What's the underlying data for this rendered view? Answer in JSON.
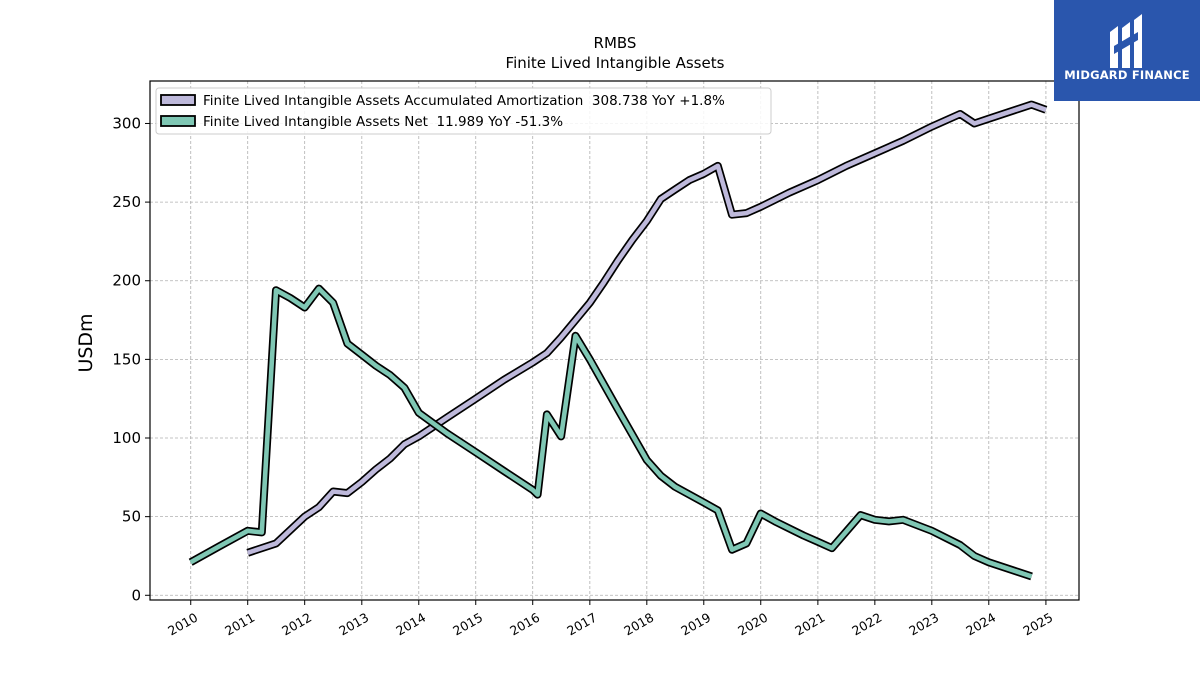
{
  "logo": {
    "text": "MIDGARD FINANCE",
    "background": "#2a56ad"
  },
  "chart_data": {
    "type": "line",
    "title": "RMBS",
    "subtitle": "Finite Lived Intangible Assets",
    "ylabel": "USDm",
    "xlabel": "",
    "ylim": [
      -3,
      327
    ],
    "xlim": [
      "2009-04-15",
      "2025-08-01"
    ],
    "yticks": [
      0,
      50,
      100,
      150,
      200,
      250,
      300
    ],
    "xticks": [
      "2010",
      "2011",
      "2012",
      "2013",
      "2014",
      "2015",
      "2016",
      "2017",
      "2018",
      "2019",
      "2020",
      "2021",
      "2022",
      "2023",
      "2024",
      "2025"
    ],
    "grid": true,
    "legend_position": "top-left",
    "series": [
      {
        "name": "Finite Lived Intangible Assets Accumulated Amortization  308.738 YoY +1.8%",
        "color": "#beb9db",
        "points": [
          [
            "2011-01-01",
            27
          ],
          [
            "2011-07-01",
            33
          ],
          [
            "2012-01-01",
            50
          ],
          [
            "2012-04-01",
            56
          ],
          [
            "2012-07-01",
            66
          ],
          [
            "2012-10-01",
            65
          ],
          [
            "2013-01-01",
            72
          ],
          [
            "2013-04-01",
            80
          ],
          [
            "2013-07-01",
            87
          ],
          [
            "2013-10-01",
            96
          ],
          [
            "2014-01-01",
            101
          ],
          [
            "2014-07-01",
            113
          ],
          [
            "2015-01-01",
            125
          ],
          [
            "2015-07-01",
            137
          ],
          [
            "2016-01-01",
            148
          ],
          [
            "2016-04-01",
            154
          ],
          [
            "2016-07-01",
            164
          ],
          [
            "2016-10-01",
            175
          ],
          [
            "2017-01-01",
            186
          ],
          [
            "2017-04-01",
            199
          ],
          [
            "2017-07-01",
            213
          ],
          [
            "2017-10-01",
            226
          ],
          [
            "2018-01-01",
            238
          ],
          [
            "2018-04-01",
            252
          ],
          [
            "2018-07-01",
            258
          ],
          [
            "2018-10-01",
            264
          ],
          [
            "2019-01-01",
            268
          ],
          [
            "2019-04-01",
            273
          ],
          [
            "2019-07-01",
            242
          ],
          [
            "2019-10-01",
            243
          ],
          [
            "2020-01-01",
            247
          ],
          [
            "2020-07-01",
            256
          ],
          [
            "2021-01-01",
            264
          ],
          [
            "2021-07-01",
            273
          ],
          [
            "2022-01-01",
            281
          ],
          [
            "2022-07-01",
            289
          ],
          [
            "2023-01-01",
            298
          ],
          [
            "2023-07-01",
            306
          ],
          [
            "2023-10-01",
            300
          ],
          [
            "2024-01-01",
            303
          ],
          [
            "2024-07-01",
            309
          ],
          [
            "2024-10-01",
            312
          ],
          [
            "2025-01-01",
            308.7
          ]
        ]
      },
      {
        "name": "Finite Lived Intangible Assets Net  11.989 YoY -51.3%",
        "color": "#7fc7b4",
        "points": [
          [
            "2010-01-01",
            21
          ],
          [
            "2010-07-01",
            31
          ],
          [
            "2011-01-01",
            41
          ],
          [
            "2011-04-01",
            40
          ],
          [
            "2011-07-01",
            194
          ],
          [
            "2011-10-01",
            189
          ],
          [
            "2012-01-01",
            183
          ],
          [
            "2012-04-01",
            195
          ],
          [
            "2012-07-01",
            186
          ],
          [
            "2012-10-01",
            160
          ],
          [
            "2013-01-01",
            153
          ],
          [
            "2013-04-01",
            146
          ],
          [
            "2013-07-01",
            140
          ],
          [
            "2013-10-01",
            132
          ],
          [
            "2014-01-01",
            116
          ],
          [
            "2014-07-01",
            103
          ],
          [
            "2015-01-01",
            91
          ],
          [
            "2015-07-01",
            79
          ],
          [
            "2016-01-01",
            67
          ],
          [
            "2016-02-01",
            64
          ],
          [
            "2016-04-01",
            115
          ],
          [
            "2016-07-01",
            101
          ],
          [
            "2016-10-01",
            165
          ],
          [
            "2017-01-01",
            150
          ],
          [
            "2017-07-01",
            118
          ],
          [
            "2018-01-01",
            86
          ],
          [
            "2018-04-01",
            76
          ],
          [
            "2018-07-01",
            69
          ],
          [
            "2019-01-01",
            59
          ],
          [
            "2019-04-01",
            54
          ],
          [
            "2019-07-01",
            29
          ],
          [
            "2019-10-01",
            33
          ],
          [
            "2020-01-01",
            52
          ],
          [
            "2020-04-01",
            47
          ],
          [
            "2020-10-01",
            38
          ],
          [
            "2021-01-01",
            34
          ],
          [
            "2021-04-01",
            30
          ],
          [
            "2021-10-01",
            51
          ],
          [
            "2022-01-01",
            48
          ],
          [
            "2022-04-01",
            47
          ],
          [
            "2022-07-01",
            48
          ],
          [
            "2023-01-01",
            41
          ],
          [
            "2023-07-01",
            32
          ],
          [
            "2023-10-01",
            25
          ],
          [
            "2024-01-01",
            21
          ],
          [
            "2024-07-01",
            15
          ],
          [
            "2024-10-01",
            12
          ]
        ]
      }
    ]
  }
}
